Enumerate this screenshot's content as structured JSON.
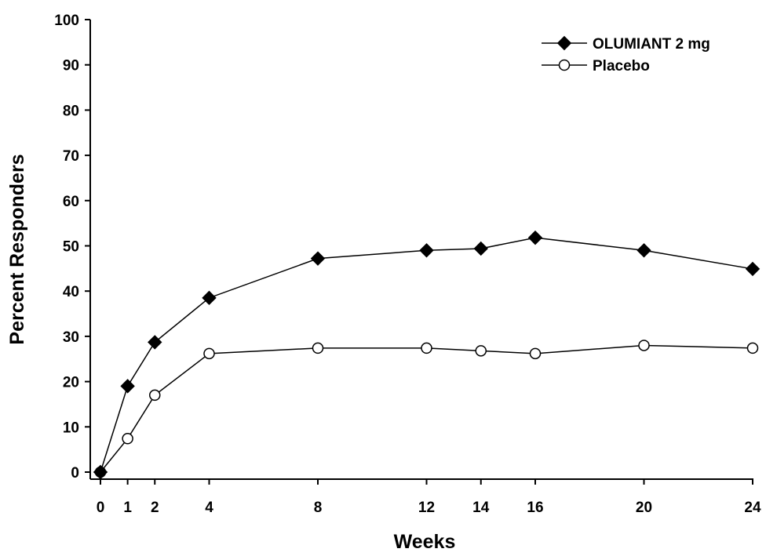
{
  "chart_data": {
    "type": "line",
    "title": "",
    "xlabel": "Weeks",
    "ylabel": "Percent Responders",
    "xlim": [
      0,
      24
    ],
    "ylim": [
      0,
      100
    ],
    "x_ticks": [
      0,
      1,
      2,
      4,
      8,
      12,
      14,
      16,
      20,
      24
    ],
    "y_ticks": [
      0,
      10,
      20,
      30,
      40,
      50,
      60,
      70,
      80,
      90,
      100
    ],
    "grid": false,
    "legend_position": "top-right",
    "series": [
      {
        "name": "OLUMIANT 2 mg",
        "marker": "filled-diamond",
        "color": "#000000",
        "x": [
          0,
          1,
          2,
          4,
          8,
          12,
          14,
          16,
          20,
          24
        ],
        "values": [
          0,
          19,
          28.7,
          38.5,
          47.2,
          49,
          49.4,
          51.8,
          49,
          44.9
        ]
      },
      {
        "name": "Placebo",
        "marker": "open-circle",
        "color": "#000000",
        "x": [
          0,
          1,
          2,
          4,
          8,
          12,
          14,
          16,
          20,
          24
        ],
        "values": [
          0,
          7.4,
          17,
          26.2,
          27.4,
          27.4,
          26.8,
          26.2,
          28,
          27.4
        ]
      }
    ]
  }
}
